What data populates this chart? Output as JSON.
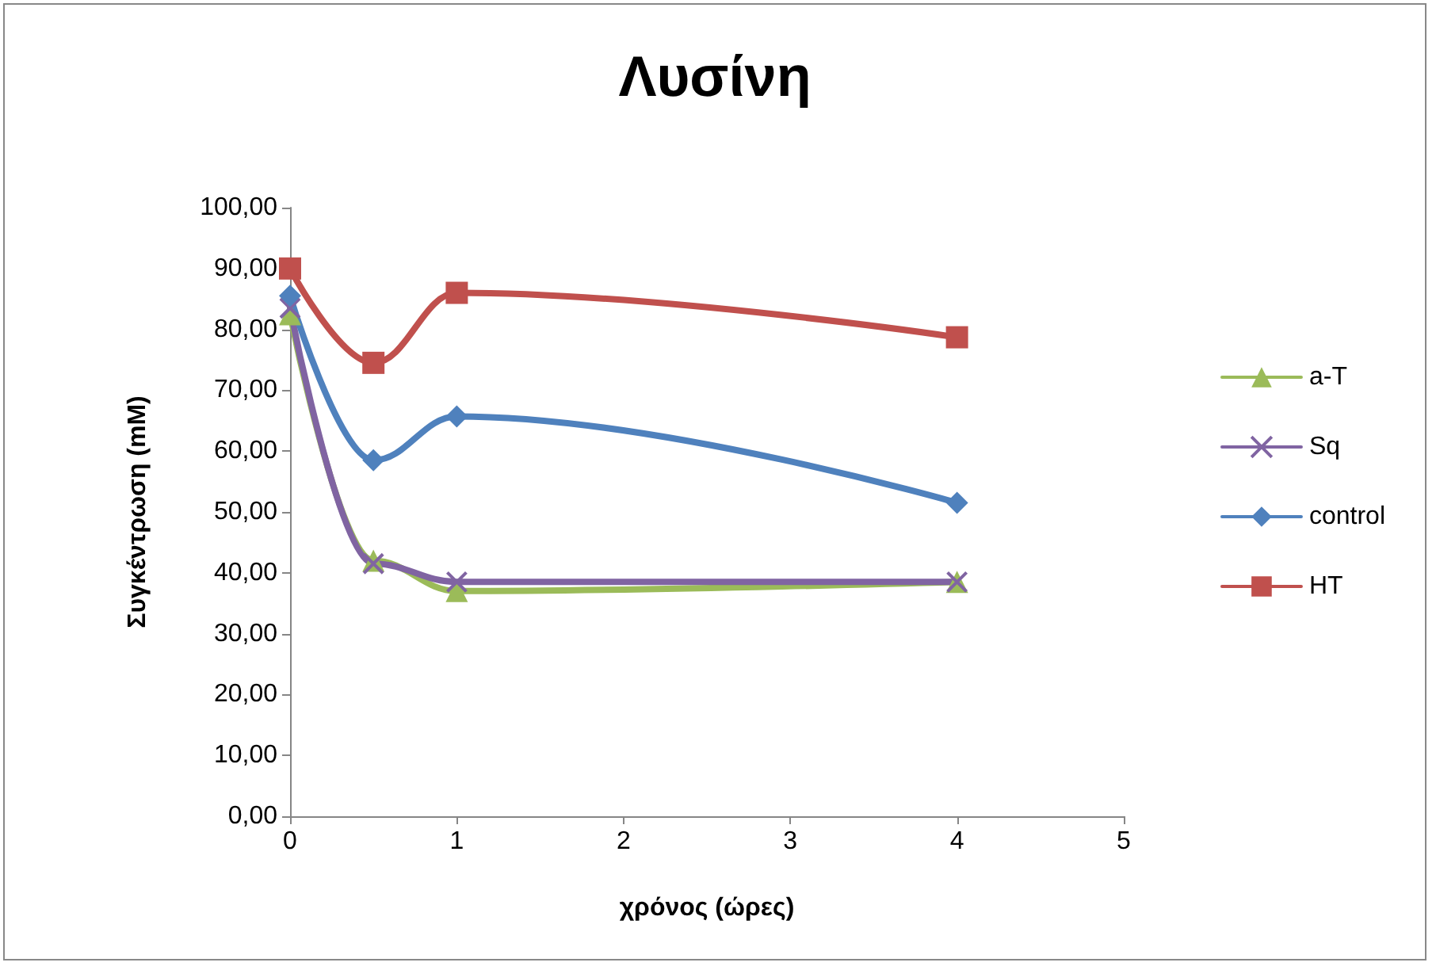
{
  "chart_data": {
    "type": "line",
    "title": "Λυσίνη",
    "xlabel": "χρόνος (ώρες)",
    "ylabel": "Συγκέντρωση (mM)",
    "x": [
      0,
      0.5,
      1,
      4
    ],
    "series": [
      {
        "name": "a-T",
        "color": "#9bbb59",
        "marker": "triangle",
        "values": [
          82.5,
          42,
          37,
          38.5
        ]
      },
      {
        "name": "Sq",
        "color": "#8064a2",
        "marker": "cross",
        "values": [
          83.5,
          41.5,
          38.5,
          38.5
        ]
      },
      {
        "name": "control",
        "color": "#4f81bd",
        "marker": "diamond",
        "values": [
          85.5,
          58.5,
          65.7,
          51.5
        ]
      },
      {
        "name": "HT",
        "color": "#c0504d",
        "marker": "square",
        "values": [
          90,
          74.5,
          86,
          78.7
        ]
      }
    ],
    "xlim": [
      0,
      5
    ],
    "xticks": [
      0,
      1,
      2,
      3,
      4,
      5
    ],
    "ylim": [
      0,
      100
    ],
    "yticks": [
      {
        "value": 0,
        "label": "0,00"
      },
      {
        "value": 10,
        "label": "10,00"
      },
      {
        "value": 20,
        "label": "20,00"
      },
      {
        "value": 30,
        "label": "30,00"
      },
      {
        "value": 40,
        "label": "40,00"
      },
      {
        "value": 50,
        "label": "50,00"
      },
      {
        "value": 60,
        "label": "60,00"
      },
      {
        "value": 70,
        "label": "70,00"
      },
      {
        "value": 80,
        "label": "80,00"
      },
      {
        "value": 90,
        "label": "90,00"
      },
      {
        "value": 100,
        "label": "100,00"
      }
    ],
    "grid": false,
    "legend": "right",
    "line_style": "solid"
  }
}
